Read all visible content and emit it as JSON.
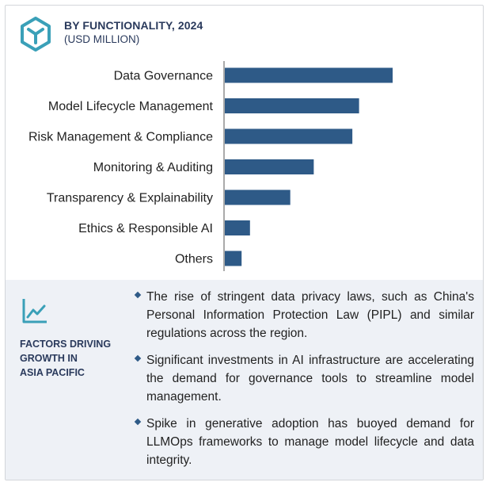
{
  "header": {
    "title": "BY FUNCTIONALITY, 2024",
    "subtitle": "(USD MILLION)",
    "icon": "cube-logo-icon"
  },
  "colors": {
    "bar": "#2e5a87",
    "heading": "#2a3a5c",
    "panel": "#eef1f6",
    "logo": "#3aa0b8"
  },
  "chart_data": {
    "type": "bar",
    "orientation": "horizontal",
    "title": "BY FUNCTIONALITY, 2024",
    "subtitle": "(USD MILLION)",
    "xlabel": "",
    "ylabel": "",
    "axis_values_shown": false,
    "grid": false,
    "legend": "none",
    "categories": [
      "Data Governance",
      "Model Lifecycle Management",
      "Risk Management & Compliance",
      "Monitoring & Auditing",
      "Transparency & Explainability",
      "Ethics & Responsible AI",
      "Others"
    ],
    "values": [
      100,
      80,
      76,
      53,
      39,
      15,
      10
    ],
    "xlim": [
      0,
      100
    ]
  },
  "factors": {
    "icon": "trend-line-icon",
    "title_lines": [
      "FACTORS DRIVING",
      "GROWTH IN",
      "ASIA PACIFIC"
    ],
    "bullets": [
      "The rise of stringent data privacy laws, such as China's Personal Information Protection Law (PIPL) and similar regulations across the region.",
      "Significant investments in AI infrastructure are accelerating the demand for governance tools to streamline model management.",
      "Spike in generative adoption has buoyed demand for LLMOps frameworks to manage model lifecycle and data integrity."
    ]
  }
}
